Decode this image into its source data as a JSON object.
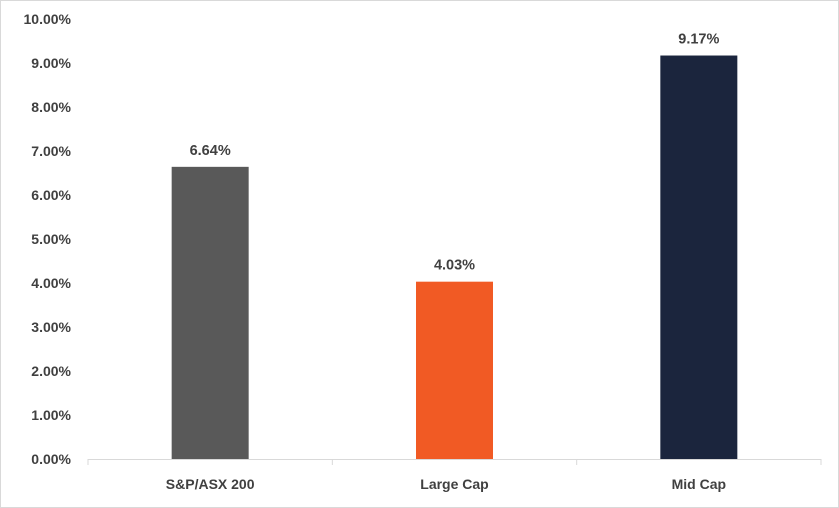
{
  "chart_data": {
    "type": "bar",
    "categories": [
      "S&P/ASX 200",
      "Large Cap",
      "Mid Cap"
    ],
    "values": [
      6.64,
      4.03,
      9.17
    ],
    "value_labels": [
      "6.64%",
      "4.03%",
      "9.17%"
    ],
    "bar_colors": [
      "#595959",
      "#f15a24",
      "#1b253d"
    ],
    "ylim": [
      0,
      10
    ],
    "yticks": [
      0,
      1,
      2,
      3,
      4,
      5,
      6,
      7,
      8,
      9,
      10
    ],
    "ytick_labels": [
      "0.00%",
      "1.00%",
      "2.00%",
      "3.00%",
      "4.00%",
      "5.00%",
      "6.00%",
      "7.00%",
      "8.00%",
      "9.00%",
      "10.00%"
    ],
    "title": "",
    "xlabel": "",
    "ylabel": "",
    "grid": false,
    "legend": "none"
  }
}
